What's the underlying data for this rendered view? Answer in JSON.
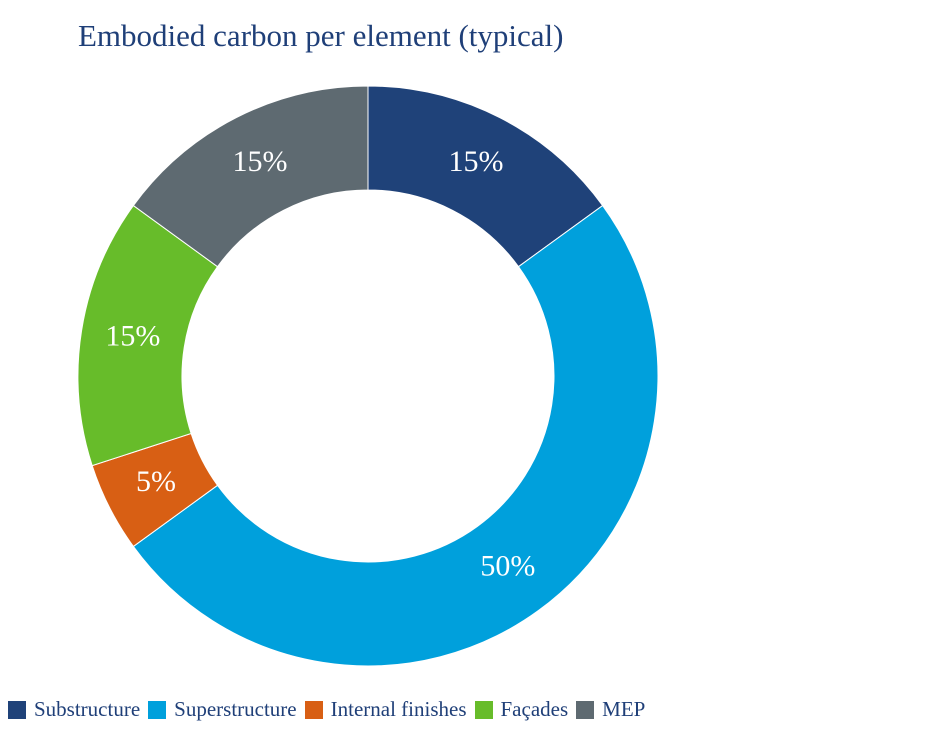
{
  "chart_data": {
    "type": "pie",
    "donut": true,
    "title": "Embodied carbon per element (typical)",
    "categories": [
      "Substructure",
      "Superstructure",
      "Internal finishes",
      "Façades",
      "MEP"
    ],
    "values": [
      15,
      50,
      5,
      15,
      15
    ],
    "data_labels": [
      "15%",
      "50%",
      "5%",
      "15%",
      "15%"
    ],
    "colors": [
      "#1f4279",
      "#00a0dc",
      "#d85f14",
      "#67bc2a",
      "#5e6a71"
    ],
    "legend_position": "bottom"
  }
}
